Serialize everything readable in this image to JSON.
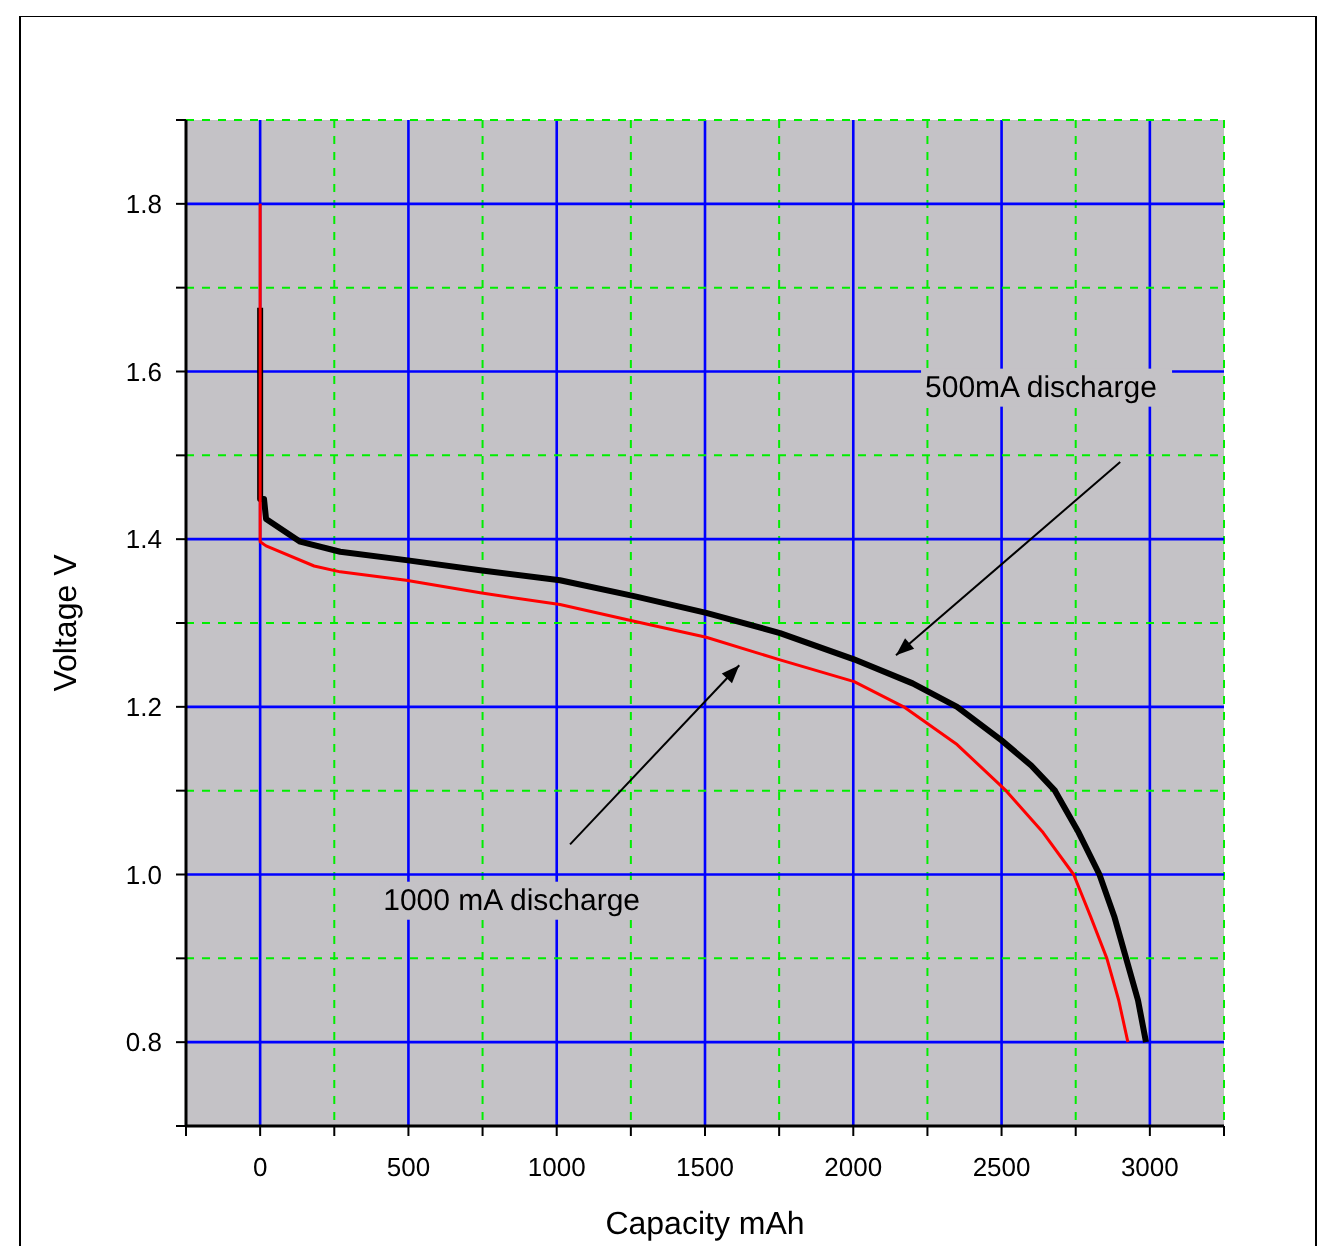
{
  "chart_data": {
    "type": "line",
    "xlabel": "Capacity mAh",
    "ylabel": "Voltage V",
    "xlim": [
      -250,
      3250
    ],
    "xticks": [
      {
        "value": -250,
        "label": null
      },
      0,
      {
        "value": 250,
        "label": null
      },
      500,
      {
        "value": 750,
        "label": null
      },
      1000,
      {
        "value": 1250,
        "label": null
      },
      1500,
      {
        "value": 1750,
        "label": null
      },
      2000,
      {
        "value": 2250,
        "label": null
      },
      2500,
      {
        "value": 2750,
        "label": null
      },
      3000,
      {
        "value": 3250,
        "label": null
      }
    ],
    "ylim": [
      0.7,
      1.9
    ],
    "yticks": [
      {
        "value": 0.7,
        "label": null
      },
      0.8,
      {
        "value": 0.9,
        "label": null
      },
      {
        "value": 1,
        "label": "1.0"
      },
      {
        "value": 1.1,
        "label": null
      },
      1.2,
      {
        "value": 1.3,
        "label": null
      },
      1.4,
      {
        "value": 1.5,
        "label": null
      },
      1.6,
      {
        "value": 1.7,
        "label": null
      },
      1.8,
      {
        "value": 1.9,
        "label": null
      }
    ],
    "grid": true,
    "marker": "none",
    "line_style": "solid",
    "series": [
      {
        "color": "#000000",
        "x": [
          0,
          0,
          13,
          20,
          135,
          270,
          492,
          742,
          1011,
          1261,
          1504,
          1753,
          2000,
          2200,
          2350,
          2500,
          2600,
          2680,
          2760,
          2830,
          2880,
          2920,
          2960,
          2987
        ],
        "values": [
          1.676,
          1.448,
          1.448,
          1.424,
          1.397,
          1.385,
          1.375,
          1.363,
          1.351,
          1.332,
          1.312,
          1.288,
          1.257,
          1.228,
          1.2,
          1.16,
          1.13,
          1.1,
          1.05,
          1.0,
          0.95,
          0.9,
          0.85,
          0.8
        ]
      },
      {
        "color": "#ff0000",
        "x": [
          0,
          0,
          20,
          182,
          270,
          492,
          742,
          1011,
          1261,
          1504,
          1753,
          2003,
          2170,
          2350,
          2515,
          2640,
          2743,
          2800,
          2855,
          2895,
          2926
        ],
        "values": [
          1.8,
          1.397,
          1.392,
          1.368,
          1.361,
          1.351,
          1.336,
          1.322,
          1.302,
          1.283,
          1.256,
          1.23,
          1.2,
          1.155,
          1.1,
          1.05,
          1.0,
          0.95,
          0.9,
          0.85,
          0.8
        ]
      }
    ],
    "annotations": [
      "500mA discharge",
      "1000 mA discharge"
    ]
  }
}
